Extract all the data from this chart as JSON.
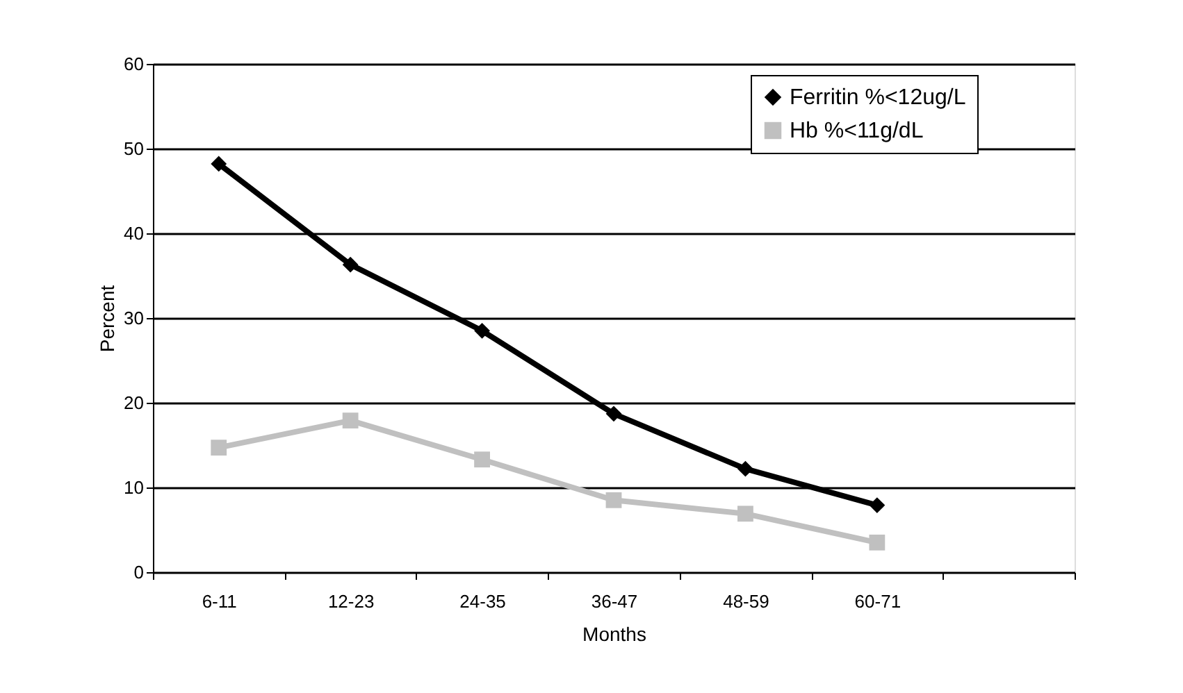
{
  "chart_data": {
    "type": "line",
    "xlabel": "Months",
    "ylabel": "Percent",
    "categories": [
      "6-11",
      "12-23",
      "24-35",
      "36-47",
      "48-59",
      "60-71",
      null
    ],
    "series": [
      {
        "name": "Ferritin %<12ug/L",
        "color": "#000000",
        "marker": "diamond",
        "values": [
          48.2,
          36.3,
          28.5,
          18.7,
          12.2,
          7.9,
          null
        ]
      },
      {
        "name": "Hb %<11g/dL",
        "color": "#c0c0c0",
        "marker": "square",
        "values": [
          14.7,
          17.9,
          13.3,
          8.5,
          6.9,
          3.5,
          null
        ]
      }
    ],
    "ylim": [
      0,
      60
    ],
    "yticks": [
      0,
      10,
      20,
      30,
      40,
      50,
      60
    ],
    "grid": "y",
    "legend": "top right"
  }
}
